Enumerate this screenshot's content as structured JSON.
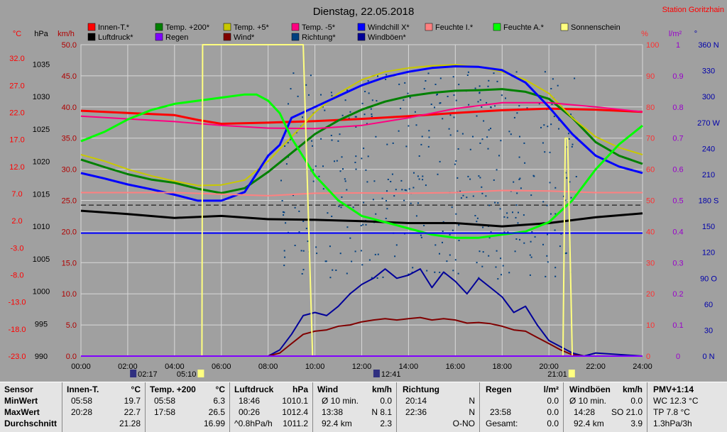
{
  "header": {
    "title": "Dienstag, 22.05.2018",
    "station": "Station Goritzhain"
  },
  "colors": {
    "background": "#a0a0a0",
    "grid": "#d8d8d8",
    "temp_axis": "#ff0000",
    "wind_axis": "#b00000",
    "percent_axis": "#ff3030",
    "rain_axis": "#9900cc",
    "dir_axis": "#0000aa",
    "stats_bg": "#e4e4e4"
  },
  "axes": {
    "left_temp_unit": "°C",
    "left_hpa_unit": "hPa",
    "left_wind_unit": "km/h",
    "right_pct_unit": "%",
    "right_rain_unit": "l/m²",
    "right_dir_unit": "°",
    "temp_ticks": [
      "32.0",
      "27.0",
      "22.0",
      "17.0",
      "12.0",
      "7.0",
      "2.0",
      "-3.0",
      "-8.0",
      "-13.0",
      "-18.0",
      "-23.0"
    ],
    "hpa_ticks": [
      "1035",
      "1030",
      "1025",
      "1020",
      "1015",
      "1010",
      "1005",
      "1000",
      "995",
      "990"
    ],
    "wind_ticks": [
      "50.0",
      "45.0",
      "40.0",
      "35.0",
      "30.0",
      "25.0",
      "20.0",
      "15.0",
      "10.0",
      "5.0",
      "0.0"
    ],
    "pct_ticks": [
      "100",
      "90",
      "80",
      "70",
      "60",
      "50",
      "40",
      "30",
      "20",
      "10",
      "0"
    ],
    "rain_ticks": [
      "1",
      "0.9",
      "0.8",
      "0.7",
      "0.6",
      "0.5",
      "0.4",
      "0.3",
      "0.2",
      "0.1",
      "0"
    ],
    "dir_ticks": [
      "360 N",
      "330",
      "300",
      "270 W",
      "240",
      "210",
      "180 S",
      "150",
      "120",
      "90 O",
      "60",
      "30",
      "0 N"
    ],
    "time_ticks": [
      "00:00",
      "02:00",
      "04:00",
      "06:00",
      "08:00",
      "10:00",
      "12:00",
      "14:00",
      "16:00",
      "18:00",
      "20:00",
      "22:00",
      "24:00"
    ],
    "sun_events": [
      {
        "label": "02:17",
        "hour": 2.28,
        "icon": "moonset-icon"
      },
      {
        "label": "05:10",
        "hour": 5.17,
        "icon": "sunrise-icon"
      },
      {
        "label": "12:41",
        "hour": 12.68,
        "icon": "moonrise-icon"
      },
      {
        "label": "21:01",
        "hour": 21.02,
        "icon": "sunset-icon"
      }
    ]
  },
  "chart_data": {
    "type": "line",
    "x_unit": "hour of day",
    "xlim": [
      0,
      24
    ],
    "wind_ylim": [
      0,
      50
    ],
    "pct_ylim": [
      0,
      100
    ],
    "hpa_ylim": [
      990,
      1038
    ],
    "temp_ylim": [
      -23,
      34.5
    ],
    "rain_ylim": [
      0,
      1
    ],
    "dir_ylim": [
      0,
      360
    ],
    "series": [
      {
        "name": "Innen-T.*",
        "color": "#ff0000",
        "axis": "temp",
        "x": [
          0,
          2,
          4,
          5,
          6,
          8,
          10,
          12,
          14,
          16,
          18,
          20,
          22,
          24
        ],
        "y": [
          22.3,
          21.9,
          21.5,
          20.6,
          19.9,
          20.1,
          20.4,
          20.8,
          21.3,
          21.9,
          22.4,
          22.7,
          22.5,
          22.1
        ]
      },
      {
        "name": "Luftdruck*",
        "color": "#000000",
        "axis": "hpa",
        "x": [
          0,
          2,
          4,
          6,
          8,
          10,
          12,
          14,
          16,
          18,
          20,
          22,
          24
        ],
        "y": [
          1012.4,
          1011.9,
          1011.3,
          1011.6,
          1011.1,
          1011.0,
          1010.8,
          1010.5,
          1010.5,
          1010.0,
          1010.5,
          1011.4,
          1012.0
        ]
      },
      {
        "name": "Temp. +200*",
        "color": "#008000",
        "axis": "temp",
        "x": [
          0,
          1,
          2,
          3,
          4,
          5,
          6,
          7,
          8,
          9,
          10,
          11,
          12,
          13,
          14,
          15,
          16,
          17,
          18,
          19,
          20,
          21,
          22,
          23,
          24
        ],
        "y": [
          13.3,
          11.9,
          10.6,
          9.6,
          9.0,
          7.9,
          7.1,
          8.0,
          11.0,
          14.5,
          18.0,
          20.5,
          22.5,
          24.0,
          25.0,
          25.6,
          26.0,
          26.1,
          26.3,
          25.8,
          24.5,
          21.0,
          16.5,
          14.0,
          12.5
        ]
      },
      {
        "name": "Temp. +5*",
        "color": "#c8c800",
        "axis": "temp",
        "x": [
          0,
          1,
          2,
          3,
          4,
          5,
          6,
          7,
          8,
          9,
          10,
          11,
          12,
          13,
          14,
          15,
          16,
          17,
          18,
          19,
          20,
          21,
          22,
          23,
          24
        ],
        "y": [
          14.2,
          13.0,
          11.5,
          10.3,
          9.3,
          8.5,
          8.6,
          9.5,
          13.0,
          17.5,
          22.0,
          25.5,
          28.0,
          29.5,
          30.2,
          30.6,
          30.8,
          30.4,
          29.5,
          28.0,
          25.5,
          21.0,
          17.5,
          15.5,
          14.2
        ]
      },
      {
        "name": "Temp. -5*",
        "color": "#ff0080",
        "axis": "temp",
        "x": [
          0,
          2,
          4,
          6,
          8,
          10,
          12,
          14,
          16,
          18,
          20,
          22,
          24
        ],
        "y": [
          21.3,
          20.8,
          20.3,
          19.6,
          19.1,
          19.0,
          19.6,
          21.0,
          22.7,
          23.8,
          23.8,
          23.0,
          22.1
        ]
      },
      {
        "name": "Windchill X*",
        "color": "#0000ff",
        "axis": "temp",
        "x": [
          0,
          1,
          2,
          3,
          4,
          5,
          6,
          7,
          8,
          8.5,
          9,
          10,
          11,
          12,
          13,
          14,
          15,
          16,
          17,
          18,
          19,
          20,
          21,
          22,
          23,
          24
        ],
        "y": [
          10.8,
          9.8,
          8.7,
          7.8,
          6.8,
          5.7,
          5.7,
          7.3,
          14.0,
          16.0,
          21.0,
          23.0,
          25.0,
          27.0,
          28.5,
          29.5,
          30.2,
          30.5,
          30.4,
          29.8,
          27.5,
          23.0,
          18.0,
          14.0,
          12.0,
          10.8
        ]
      },
      {
        "name": "Feuchte I.*",
        "color": "#ff8080",
        "axis": "pct",
        "x": [
          0,
          4,
          6,
          8,
          10,
          12,
          14,
          16,
          18,
          20,
          22,
          24
        ],
        "y": [
          52.5,
          52.5,
          52.0,
          51.5,
          52.3,
          52.4,
          52.3,
          52.5,
          53.2,
          53.0,
          52.5,
          52.5
        ]
      },
      {
        "name": "Feuchte A.*",
        "color": "#00ff00",
        "axis": "pct",
        "x": [
          0,
          1,
          2,
          3,
          4,
          5,
          6,
          7,
          7.5,
          8,
          8.5,
          9,
          9.5,
          10,
          11,
          12,
          13,
          14,
          15,
          16,
          17,
          18,
          19,
          20,
          21,
          22,
          23,
          24
        ],
        "y": [
          69,
          72,
          76,
          79,
          81,
          82,
          83,
          84,
          84,
          82,
          78,
          70,
          64,
          58,
          50,
          45,
          43,
          41,
          39,
          38,
          38,
          39,
          40,
          43,
          50,
          60,
          68,
          74
        ]
      },
      {
        "name": "Windchill",
        "color": "#0000ff",
        "axis": "pct",
        "flat": true,
        "x": [
          0,
          24
        ],
        "y": [
          39.5,
          39.5
        ]
      },
      {
        "name": "Windböen*",
        "color": "#000099",
        "axis": "wind",
        "x": [
          0,
          8,
          8.5,
          9,
          9.5,
          10,
          10.5,
          11,
          11.5,
          12,
          12.5,
          13,
          13.5,
          14,
          14.5,
          15,
          15.5,
          16,
          16.5,
          17,
          17.5,
          18,
          18.5,
          19,
          19.5,
          20,
          20.5,
          21,
          21.5,
          22,
          24
        ],
        "y": [
          0,
          0,
          1.0,
          3.5,
          6.5,
          7.0,
          6.5,
          8.0,
          10.0,
          11.5,
          12.5,
          14.0,
          12.5,
          13.0,
          14.0,
          11.0,
          13.5,
          12.0,
          10.0,
          12.5,
          11.0,
          9.5,
          7.0,
          8.0,
          5.0,
          2.5,
          1.5,
          0.5,
          0.0,
          0.5,
          0
        ]
      },
      {
        "name": "Wind*",
        "color": "#800000",
        "axis": "wind",
        "x": [
          0,
          8,
          8.5,
          9,
          9.5,
          10,
          10.5,
          11,
          11.5,
          12,
          12.5,
          13,
          13.5,
          14,
          14.5,
          15,
          15.5,
          16,
          16.5,
          17,
          17.5,
          18,
          18.5,
          19,
          19.5,
          20,
          20.5,
          21,
          21.5,
          22,
          24
        ],
        "y": [
          0,
          0,
          0.5,
          2.0,
          3.5,
          4.0,
          4.2,
          4.8,
          5.0,
          5.5,
          5.8,
          6.0,
          5.8,
          6.0,
          6.2,
          5.8,
          6.0,
          5.8,
          5.3,
          5.4,
          5.2,
          4.8,
          4.2,
          4.0,
          3.0,
          2.0,
          1.0,
          0.2,
          0.0,
          0.0,
          0
        ]
      },
      {
        "name": "Sonnenschein",
        "color": "#ffff80",
        "axis": "wind",
        "x": [
          0,
          5.17,
          5.2,
          9.5,
          9.9,
          20.6,
          20.7,
          20.8,
          21.0,
          24
        ],
        "y": [
          0,
          0,
          50,
          50,
          0,
          0,
          35,
          35,
          0,
          0
        ]
      },
      {
        "name": "Regen",
        "color": "#8000ff",
        "axis": "rain",
        "x": [
          0,
          24
        ],
        "y": [
          0,
          0
        ]
      }
    ],
    "scatter": {
      "name": "Richtung*",
      "color": "#004080",
      "axis": "dir",
      "x_range": [
        8.5,
        21.2
      ],
      "y_range": [
        90,
        330
      ]
    },
    "reference_lines": [
      {
        "axis": "pct",
        "value": 48.5,
        "style": "dashed",
        "color": "#000000"
      }
    ],
    "legend_placement": "top"
  },
  "stats": {
    "sensor": {
      "title": "Sensor",
      "rows": [
        "MinWert",
        "MaxWert",
        "Durchschnitt"
      ]
    },
    "innen": {
      "title": "Innen-T.",
      "unit": "°C",
      "min_time": "05:58",
      "min_val": "19.7",
      "max_time": "20:28",
      "max_val": "22.7",
      "avg": "21.28"
    },
    "temp200": {
      "title": "Temp. +200",
      "unit": "°C",
      "min_time": "05:58",
      "min_val": "6.3",
      "max_time": "17:58",
      "max_val": "26.5",
      "avg": "16.99"
    },
    "luftdruck": {
      "title": "Luftdruck",
      "unit": "hPa",
      "min_time": "18:46",
      "min_val": "1010.1",
      "max_time": "00:26",
      "max_val": "1012.4",
      "trend": "^0.8hPa/h",
      "avg": "1011.2"
    },
    "wind": {
      "title": "Wind",
      "unit": "km/h",
      "r1a": "Ø 10 min.",
      "r1b": "0.0",
      "r2a": "13:38",
      "r2b": "N 8.1",
      "r3a": "92.4 km",
      "r3b": "2.3"
    },
    "richtung": {
      "title": "Richtung",
      "r1a": "20:14",
      "r1b": "N",
      "r2a": "22:36",
      "r2b": "N",
      "r3b": "O-NO"
    },
    "regen": {
      "title": "Regen",
      "unit": "l/m²",
      "r1b": "0.0",
      "r2a": "23:58",
      "r2b": "0.0",
      "r3a": "Gesamt:",
      "r3b": "0.0"
    },
    "windboen": {
      "title": "Windböen",
      "unit": "km/h",
      "r1a": "Ø 10 min.",
      "r1b": "0.0",
      "r2a": "14:28",
      "r2b": "SO 21.0",
      "r3a": "92.4 km",
      "r3b": "3.9"
    },
    "pmv": {
      "title": "PMV+1:14",
      "r1": "WC 12.3 °C",
      "r2": "TP 7.8 °C",
      "r3": "1.3hPa/3h"
    }
  }
}
